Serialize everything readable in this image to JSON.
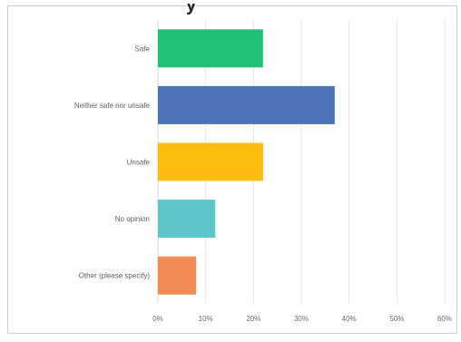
{
  "chart_data": {
    "type": "bar",
    "orientation": "horizontal",
    "title": "",
    "title_fragment": "y",
    "categories": [
      "Safe",
      "Neither safe nor unsafe",
      "Unsafe",
      "No opinion",
      "Other (please specify)"
    ],
    "values": [
      22,
      37,
      22,
      12,
      8
    ],
    "colors": [
      "#21c17a",
      "#4f74b6",
      "#fbbe10",
      "#5ec6c9",
      "#f28b55"
    ],
    "x_ticks": [
      "0%",
      "10%",
      "20%",
      "30%",
      "40%",
      "50%",
      "60%"
    ],
    "xlim": [
      0,
      60
    ],
    "value_unit": "%",
    "grid": true,
    "legend": "none"
  }
}
